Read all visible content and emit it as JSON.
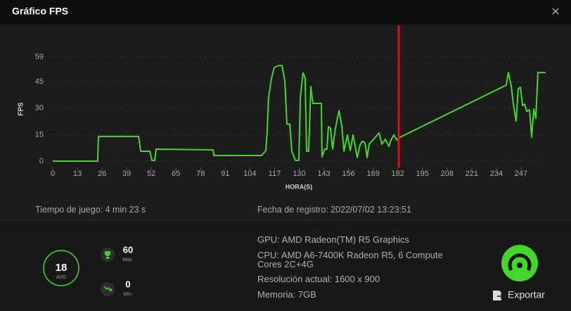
{
  "header": {
    "title": "Gráfico FPS"
  },
  "chart_data": {
    "type": "line",
    "x_label": "HORA(S)",
    "y_label": "FPS",
    "color": "#44d62c",
    "cursor_color": "#e01010",
    "cursor_x": 182.5,
    "xlim": [
      0,
      260
    ],
    "xticks": [
      0,
      13,
      26,
      39,
      52,
      65,
      78,
      91,
      104,
      117,
      130,
      143,
      156,
      169,
      182,
      195,
      208,
      221,
      234,
      247
    ],
    "ylim": [
      0,
      75
    ],
    "yticks": [
      0,
      15,
      30,
      45,
      59
    ],
    "grid": true,
    "x": [
      0,
      23.7,
      24.1,
      45.3,
      46.4,
      51.2,
      52.3,
      53.8,
      54.5,
      56,
      84.6,
      85,
      110.2,
      112.4,
      113.1,
      113.8,
      115.3,
      116.8,
      119,
      120.9,
      122.4,
      123.5,
      125,
      126.1,
      128,
      129.8,
      130.6,
      132,
      133.1,
      133.9,
      135,
      136.1,
      137.2,
      141.7,
      142,
      143.5,
      144.6,
      145.4,
      146.5,
      147.6,
      149.1,
      151,
      152.5,
      153.6,
      155.4,
      156.9,
      158.4,
      160.6,
      162.1,
      163.2,
      164.7,
      165.8,
      166.9,
      169.5,
      172.1,
      173.6,
      175.4,
      177.3,
      178.4,
      179.9,
      181.4,
      182.5,
      239.2,
      240.3,
      241.8,
      242.9,
      244.4,
      245.5,
      246.7,
      247.8,
      248.9,
      250,
      251.5,
      252.6,
      253.7,
      254.8,
      255.9,
      260
    ],
    "values": [
      0,
      0,
      14,
      14,
      5.6,
      5.6,
      0.4,
      0.4,
      6.8,
      6.8,
      6.4,
      3.2,
      3.2,
      6,
      17,
      35.5,
      46.6,
      53,
      54.2,
      54.2,
      45.5,
      21,
      21,
      5.6,
      0.4,
      0.4,
      36.3,
      50,
      47.4,
      5.6,
      5.6,
      42.3,
      32.7,
      32.7,
      2.4,
      6.8,
      6.8,
      19.5,
      18.7,
      6.8,
      18.7,
      28.7,
      19.5,
      5.6,
      14.8,
      6,
      14.8,
      2,
      9.2,
      11.2,
      10.4,
      2,
      9.6,
      12.8,
      16,
      9.6,
      12.4,
      8.4,
      12,
      14.8,
      12,
      13.2,
      43.1,
      50.2,
      42.7,
      32.7,
      22.7,
      41,
      41.9,
      31.5,
      32.3,
      28.3,
      29.1,
      13.6,
      29.5,
      24.3,
      50.2,
      50.2
    ]
  },
  "session": {
    "play_time": "Tiempo de juego: 4 min 23 s",
    "record_date": "Fecha de registro: 2022/07/02 13:23:51"
  },
  "stats": {
    "avg": 18,
    "avg_label": "AVG",
    "max": 60,
    "max_label": "Máx.",
    "min": 0,
    "min_label": "Mín."
  },
  "system": {
    "gpu": "GPU: AMD Radeon(TM) R5 Graphics",
    "cpu": "CPU: AMD A6-7400K Radeon R5, 6 Compute Cores 2C+4G",
    "resolution": "Resolución actual: 1600 x 900",
    "memory": "Memoria: 7GB"
  },
  "export": "Exportar"
}
